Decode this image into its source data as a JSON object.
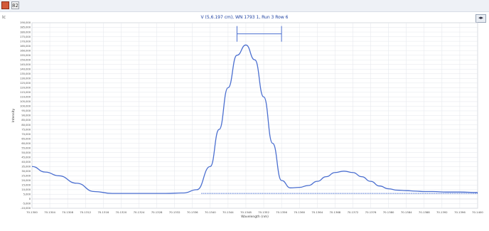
{
  "window": {
    "title_glyph": "82",
    "corner_label": "Ic",
    "nav_arrows": "◂▸"
  },
  "chart_data": {
    "type": "line",
    "title": "V (5,6.197 cm), WN 1793 1, Run 3 Row 6",
    "xlabel": "Wavelength (nm)",
    "ylabel": "Intensity",
    "xlim": [
      70.13,
      70.1802
    ],
    "ylim": [
      -10000,
      190000
    ],
    "grid": true,
    "x_ticks": [
      "70.1300",
      "70.1304",
      "70.1308",
      "70.1312",
      "70.1316",
      "70.1320",
      "70.1324",
      "70.1328",
      "70.1332",
      "70.1336",
      "70.1340",
      "70.1344",
      "70.1348",
      "70.1352",
      "70.1356",
      "70.1360",
      "70.1364",
      "70.1368",
      "70.1372",
      "70.1376",
      "70.1380",
      "70.1384",
      "70.1388",
      "70.1392",
      "70.1396",
      "70.1400"
    ],
    "y_ticks": [
      "190,000",
      "185,000",
      "180,000",
      "175,000",
      "170,000",
      "165,000",
      "160,000",
      "155,000",
      "150,000",
      "145,000",
      "140,000",
      "135,000",
      "130,000",
      "125,000",
      "120,000",
      "115,000",
      "110,000",
      "105,000",
      "100,000",
      "95,000",
      "90,000",
      "85,000",
      "80,000",
      "75,000",
      "70,000",
      "65,000",
      "60,000",
      "55,000",
      "50,000",
      "45,000",
      "40,000",
      "35,000",
      "30,000",
      "25,000",
      "20,000",
      "15,000",
      "10,000",
      "5,000",
      "0",
      "-5,000",
      "-10,000"
    ],
    "series": [
      {
        "values_x": [
          0,
          0.03,
          0.06,
          0.1,
          0.14,
          0.18,
          0.22,
          0.26,
          0.3,
          0.34,
          0.37,
          0.4,
          0.42,
          0.44,
          0.46,
          0.48,
          0.5,
          0.52,
          0.54,
          0.56,
          0.58,
          0.6,
          0.62,
          0.64,
          0.66,
          0.68,
          0.7,
          0.72,
          0.74,
          0.76,
          0.78,
          0.8,
          0.82,
          0.84,
          0.86,
          0.88,
          0.9,
          0.93,
          0.96,
          1.0
        ],
        "values_y": [
          35000,
          29000,
          25000,
          17000,
          8000,
          6000,
          6000,
          6000,
          6000,
          6500,
          10000,
          35000,
          75000,
          120000,
          155000,
          166000,
          150000,
          110000,
          60000,
          20000,
          12000,
          12500,
          14500,
          19000,
          24000,
          28500,
          30000,
          28500,
          24000,
          19000,
          14000,
          11000,
          9500,
          9000,
          8500,
          8000,
          8000,
          7500,
          7500,
          7000
        ],
        "color": "#4b6fd0"
      },
      {
        "values_x": [
          0.38,
          1.0
        ],
        "values_y": [
          6000,
          6000
        ],
        "color": "#4b6fd0"
      }
    ],
    "annotation": {
      "bar_x": [
        0.46,
        0.56
      ],
      "bar_y": 178000
    }
  }
}
